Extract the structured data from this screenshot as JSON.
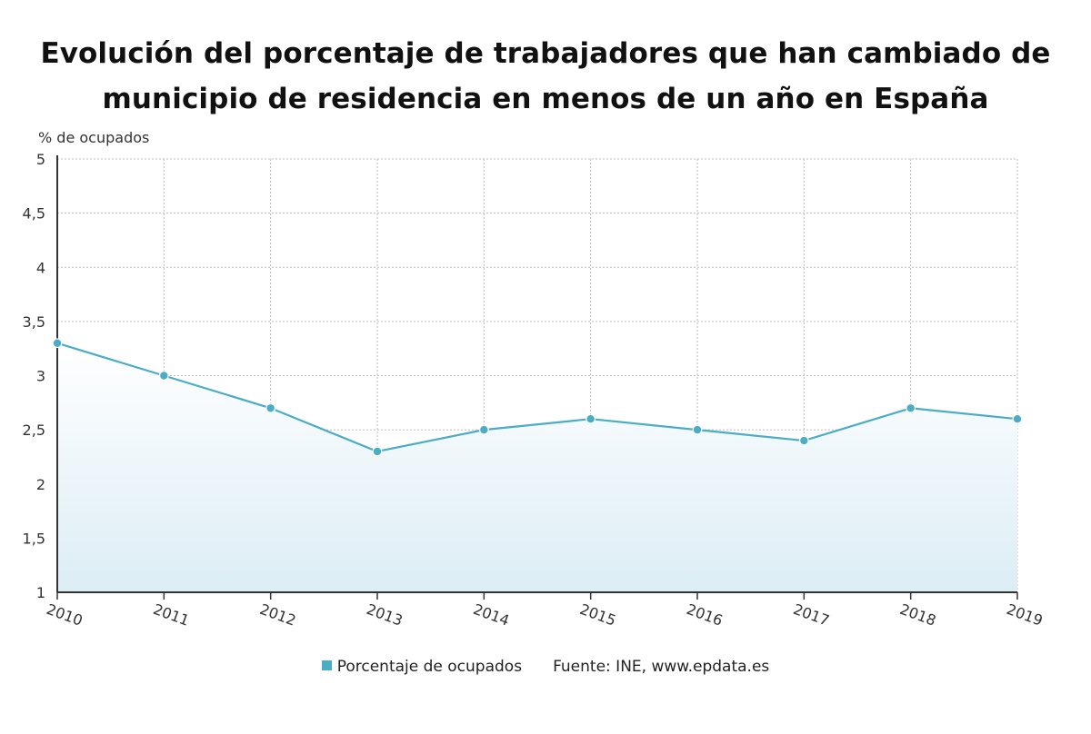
{
  "title_lines": [
    "Evolución del porcentaje de trabajadores que han cambiado de",
    "municipio de residencia en menos de un año en España"
  ],
  "colors": {
    "series": "#4bacc6",
    "area_top": "#ffffff",
    "area_bottom": "#dcedf5",
    "grid": "#bdbdbd",
    "axis": "#333333"
  },
  "legend": {
    "series_label": "Porcentaje de ocupados",
    "source": "Fuente: INE, www.epdata.es"
  },
  "chart_data": {
    "type": "area",
    "title": "Evolución del porcentaje de trabajadores que han cambiado de municipio de residencia en menos de un año en España",
    "ylabel": "% de ocupados",
    "xlabel": "",
    "x": [
      "2010",
      "2011",
      "2012",
      "2013",
      "2014",
      "2015",
      "2016",
      "2017",
      "2018",
      "2019"
    ],
    "series": [
      {
        "name": "Porcentaje de ocupados",
        "values": [
          3.3,
          3.0,
          2.7,
          2.3,
          2.5,
          2.6,
          2.5,
          2.4,
          2.7,
          2.6
        ]
      }
    ],
    "ylim": [
      1,
      5
    ],
    "yticks": [
      1,
      1.5,
      2,
      2.5,
      3,
      3.5,
      4,
      4.5,
      5
    ],
    "ytick_labels": [
      "1",
      "1,5",
      "2",
      "2,5",
      "3",
      "3,5",
      "4",
      "4,5",
      "5"
    ],
    "grid": true,
    "legend_position": "bottom"
  }
}
